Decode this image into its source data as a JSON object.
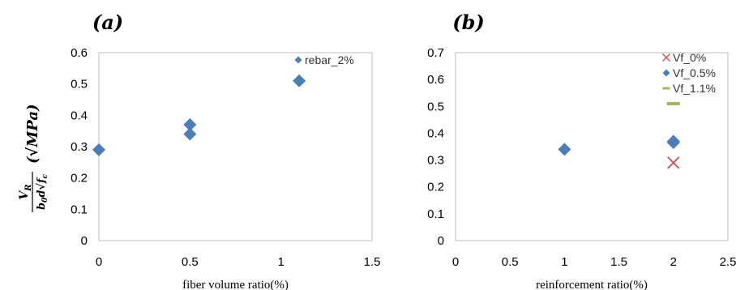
{
  "chart_data": [
    {
      "type": "scatter",
      "panel_label": "(a)",
      "xlabel": "fiber volume ratio(%)",
      "xlim": [
        0,
        1.5
      ],
      "ylim": [
        0,
        0.6
      ],
      "xticks": [
        "0",
        "0.5",
        "1",
        "1.5"
      ],
      "yticks": [
        "0",
        "0.1",
        "0.2",
        "0.3",
        "0.4",
        "0.5",
        "0.6"
      ],
      "grid": false,
      "legend_position": "top-right",
      "series": [
        {
          "name": "rebar_2%",
          "marker": "diamond",
          "color": "#4a7ebb",
          "points": [
            {
              "x": 0,
              "y": 0.29
            },
            {
              "x": 0.5,
              "y": 0.37
            },
            {
              "x": 0.5,
              "y": 0.34
            },
            {
              "x": 1.1,
              "y": 0.51
            }
          ]
        }
      ]
    },
    {
      "type": "scatter",
      "panel_label": "(b)",
      "xlabel": "reinforcement ratio(%)",
      "xlim": [
        0,
        2.5
      ],
      "ylim": [
        0,
        0.7
      ],
      "xticks": [
        "0",
        "0.5",
        "1",
        "1.5",
        "2",
        "2.5"
      ],
      "yticks": [
        "0",
        "0.1",
        "0.2",
        "0.3",
        "0.4",
        "0.5",
        "0.6",
        "0.7"
      ],
      "grid": false,
      "legend_position": "top-right",
      "series": [
        {
          "name": "Vf_0%",
          "marker": "x",
          "color": "#c0504d",
          "points": [
            {
              "x": 2,
              "y": 0.29
            }
          ]
        },
        {
          "name": "Vf_0.5%",
          "marker": "diamond",
          "color": "#4a7ebb",
          "points": [
            {
              "x": 1,
              "y": 0.34
            },
            {
              "x": 2,
              "y": 0.37
            },
            {
              "x": 2,
              "y": 0.365
            }
          ]
        },
        {
          "name": "Vf_1.1%",
          "marker": "dash",
          "color": "#9bbb59",
          "points": [
            {
              "x": 2,
              "y": 0.51
            }
          ]
        }
      ]
    }
  ],
  "shared_ylabel": {
    "numerator": "V",
    "numerator_sub": "R",
    "denominator": "b",
    "denominator_sub1": "0",
    "denominator_mid": "d",
    "denominator_root": "f",
    "denominator_root_sub": "c",
    "unit_text": "(√MPa)"
  }
}
